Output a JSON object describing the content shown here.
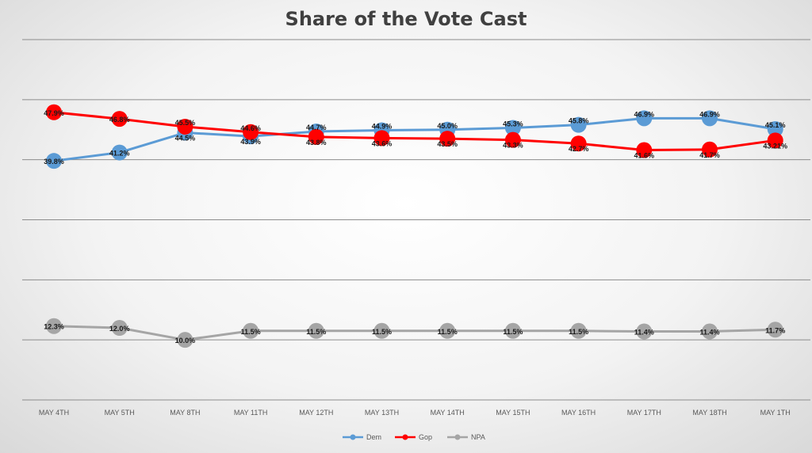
{
  "chart_data": {
    "type": "line",
    "title": "Share of the Vote Cast",
    "xlabel": "",
    "ylabel": "",
    "categories": [
      "MAY 4TH",
      "MAY 5TH",
      "MAY 8TH",
      "MAY 11TH",
      "MAY 12TH",
      "MAY 13TH",
      "MAY 14TH",
      "MAY 15TH",
      "MAY 16TH",
      "MAY 17TH",
      "MAY 18TH",
      "MAY 1TH"
    ],
    "ylim": [
      0,
      60
    ],
    "grid": true,
    "legend_position": "bottom",
    "series": [
      {
        "name": "Dem",
        "color": "#5b9bd5",
        "values": [
          39.8,
          41.2,
          44.5,
          43.9,
          44.7,
          44.9,
          45.0,
          45.3,
          45.8,
          46.9,
          46.9,
          45.1
        ],
        "labels": [
          "39.8%",
          "41.2%",
          "44.5%",
          "43.9%",
          "44.7%",
          "44.9%",
          "45.0%",
          "45.3%",
          "45.8%",
          "46.9%",
          "46.9%",
          "45.1%"
        ]
      },
      {
        "name": "Gop",
        "color": "#ff0000",
        "values": [
          47.9,
          46.8,
          45.5,
          44.6,
          43.8,
          43.6,
          43.5,
          43.3,
          42.7,
          41.6,
          41.7,
          43.21
        ],
        "labels": [
          "47.9%",
          "46.8%",
          "45.5%",
          "44.6%",
          "43.8%",
          "43.6%",
          "43.5%",
          "43.3%",
          "42.7%",
          "41.6%",
          "41.7%",
          "43.21%"
        ]
      },
      {
        "name": "NPA",
        "color": "#a5a5a5",
        "values": [
          12.3,
          12.0,
          10.0,
          11.5,
          11.5,
          11.5,
          11.5,
          11.5,
          11.5,
          11.4,
          11.4,
          11.7
        ],
        "labels": [
          "12.3%",
          "12.0%",
          "10.0%",
          "11.5%",
          "11.5%",
          "11.5%",
          "11.5%",
          "11.5%",
          "11.5%",
          "11.4%",
          "11.4%",
          "11.7%"
        ]
      }
    ]
  }
}
